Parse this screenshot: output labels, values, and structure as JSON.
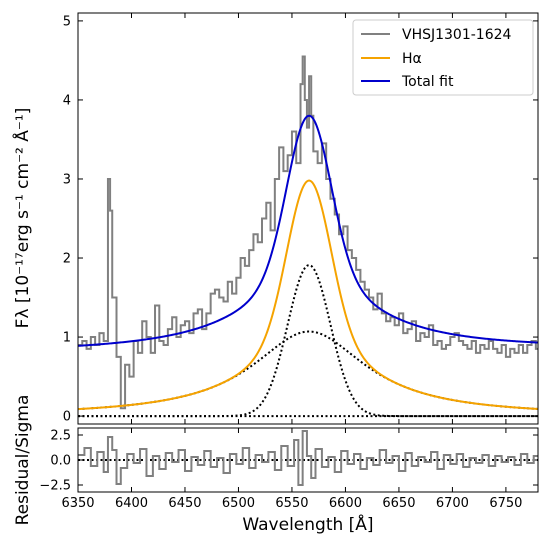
{
  "chart_data": [
    {
      "type": "line",
      "panel": "main",
      "xlim": [
        6350,
        6780
      ],
      "ylim": [
        -0.1,
        5.1
      ],
      "xticks": [
        6350,
        6400,
        6450,
        6500,
        6550,
        6600,
        6650,
        6700,
        6750
      ],
      "yticks": [
        0,
        1,
        2,
        3,
        4,
        5
      ],
      "ytick_labels": [
        "0",
        "1",
        "2",
        "3",
        "4",
        "5"
      ],
      "ylabel": "Fλ [10⁻¹⁷erg s⁻¹ cm⁻² Å⁻¹]",
      "legend_position": "top-right",
      "series": [
        {
          "name": "VHSJ1301-1624",
          "color": "#808080",
          "style": "steps",
          "x": [
            6350,
            6354,
            6358,
            6362,
            6366,
            6370,
            6374,
            6378,
            6380,
            6382,
            6386,
            6390,
            6394,
            6398,
            6402,
            6406,
            6410,
            6414,
            6418,
            6422,
            6426,
            6430,
            6434,
            6438,
            6442,
            6446,
            6450,
            6454,
            6458,
            6462,
            6466,
            6470,
            6474,
            6478,
            6482,
            6486,
            6490,
            6494,
            6498,
            6502,
            6506,
            6510,
            6514,
            6518,
            6522,
            6526,
            6530,
            6534,
            6538,
            6542,
            6546,
            6550,
            6554,
            6558,
            6560,
            6562,
            6564,
            6566,
            6568,
            6570,
            6574,
            6578,
            6582,
            6586,
            6590,
            6594,
            6598,
            6602,
            6606,
            6610,
            6614,
            6618,
            6622,
            6626,
            6630,
            6634,
            6638,
            6642,
            6646,
            6650,
            6654,
            6658,
            6662,
            6666,
            6670,
            6674,
            6678,
            6682,
            6686,
            6690,
            6694,
            6698,
            6702,
            6706,
            6710,
            6714,
            6718,
            6722,
            6726,
            6730,
            6734,
            6738,
            6742,
            6746,
            6750,
            6754,
            6758,
            6762,
            6766,
            6770,
            6774,
            6778
          ],
          "y": [
            0.9,
            0.95,
            0.85,
            1.0,
            0.9,
            1.05,
            0.95,
            3.0,
            2.6,
            1.5,
            0.75,
            0.1,
            0.65,
            0.5,
            0.95,
            0.8,
            1.2,
            1.0,
            0.8,
            1.4,
            0.95,
            0.9,
            1.1,
            1.25,
            1.0,
            1.15,
            1.2,
            1.05,
            1.3,
            1.35,
            1.1,
            1.3,
            1.55,
            1.6,
            1.5,
            1.45,
            1.7,
            1.55,
            1.75,
            2.0,
            1.9,
            2.1,
            2.3,
            2.2,
            2.5,
            2.7,
            2.35,
            3.0,
            3.4,
            3.1,
            3.3,
            3.6,
            3.2,
            4.2,
            4.55,
            4.0,
            3.65,
            4.3,
            3.8,
            3.35,
            3.2,
            3.45,
            3.0,
            2.75,
            2.55,
            2.3,
            2.4,
            2.1,
            2.0,
            1.85,
            1.7,
            1.6,
            1.5,
            1.35,
            1.55,
            1.3,
            1.2,
            1.25,
            1.15,
            1.3,
            1.05,
            1.1,
            1.2,
            0.95,
            1.05,
            1.0,
            1.15,
            0.9,
            0.95,
            0.85,
            0.9,
            1.0,
            1.05,
            0.95,
            0.9,
            0.85,
            0.95,
            0.8,
            0.9,
            0.85,
            0.95,
            0.85,
            0.8,
            0.9,
            0.75,
            0.85,
            0.8,
            0.9,
            0.8,
            0.9,
            0.95,
            0.85
          ]
        },
        {
          "name": "Hα",
          "color": "#f5a300",
          "model": "sum-of-components"
        },
        {
          "name": "Total fit",
          "color": "#0000cc",
          "model": "continuum-plus-halpha",
          "continuum_left": 0.8,
          "continuum_right": 0.84
        }
      ],
      "components": [
        {
          "shape": "lorentzian",
          "center": 6566,
          "amplitude": 1.07,
          "hwhm": 65,
          "style": "dotted",
          "color": "#000000"
        },
        {
          "shape": "gaussian",
          "center": 6566,
          "amplitude": 1.91,
          "sigma": 20,
          "style": "dotted",
          "color": "#000000"
        }
      ],
      "zero_line": {
        "y": 0,
        "style": "dotted",
        "color": "#000000"
      }
    },
    {
      "type": "line",
      "panel": "residual",
      "xlim": [
        6350,
        6780
      ],
      "ylim": [
        -3.2,
        3.2
      ],
      "xticks": [
        6350,
        6400,
        6450,
        6500,
        6550,
        6600,
        6650,
        6700,
        6750
      ],
      "xtick_labels": [
        "6350",
        "6400",
        "6450",
        "6500",
        "6550",
        "6600",
        "6650",
        "6700",
        "6750"
      ],
      "yticks": [
        -2.5,
        0,
        2.5
      ],
      "ytick_labels": [
        "−2.5",
        "0.0",
        "2.5"
      ],
      "xlabel": "Wavelength [Å]",
      "ylabel": "Residual/Sigma",
      "series": [
        {
          "color": "#808080",
          "style": "steps",
          "x": [
            6350,
            6356,
            6362,
            6368,
            6374,
            6378,
            6382,
            6386,
            6390,
            6396,
            6402,
            6408,
            6414,
            6420,
            6426,
            6432,
            6438,
            6444,
            6450,
            6456,
            6462,
            6468,
            6474,
            6480,
            6486,
            6492,
            6498,
            6504,
            6510,
            6516,
            6522,
            6528,
            6534,
            6540,
            6546,
            6552,
            6556,
            6560,
            6564,
            6568,
            6572,
            6578,
            6584,
            6590,
            6596,
            6602,
            6608,
            6614,
            6620,
            6626,
            6632,
            6638,
            6644,
            6650,
            6656,
            6662,
            6668,
            6674,
            6680,
            6686,
            6692,
            6698,
            6704,
            6710,
            6716,
            6722,
            6728,
            6734,
            6740,
            6746,
            6752,
            6758,
            6764,
            6770,
            6776
          ],
          "y": [
            0.5,
            1.2,
            -0.6,
            0.8,
            -1.2,
            2.3,
            1.0,
            -2.4,
            -0.8,
            0.6,
            -0.3,
            1.1,
            -1.6,
            0.4,
            -0.9,
            0.7,
            -0.2,
            1.0,
            -1.1,
            0.3,
            -0.5,
            0.9,
            -0.7,
            0.2,
            -1.3,
            0.6,
            -0.4,
            1.2,
            -0.8,
            0.5,
            -0.2,
            0.8,
            -1.0,
            1.4,
            -0.6,
            2.0,
            -2.5,
            2.9,
            0.4,
            -1.8,
            1.1,
            -0.7,
            0.3,
            -1.2,
            0.9,
            -0.4,
            0.6,
            -0.9,
            0.2,
            -0.5,
            1.0,
            -0.3,
            0.4,
            -1.1,
            0.7,
            -0.6,
            0.3,
            -0.2,
            0.8,
            -0.9,
            0.5,
            -0.4,
            0.6,
            -0.7,
            0.2,
            -0.3,
            0.5,
            -0.6,
            0.4,
            -0.2,
            0.3,
            -0.5,
            0.6,
            -0.3,
            0.4
          ]
        }
      ],
      "zero_line": {
        "y": 0,
        "style": "dotted",
        "color": "#000000"
      }
    }
  ]
}
